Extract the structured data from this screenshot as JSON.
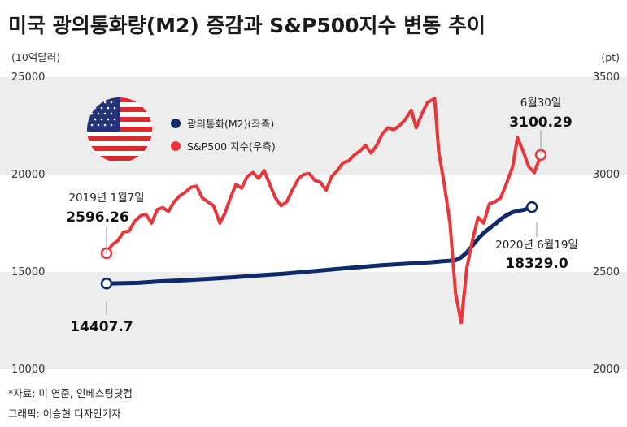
{
  "title": "미국 광의통화량(M2) 증감과 S&P500지수 변동 추이",
  "left_unit": "(10억달러)",
  "right_unit": "(pt)",
  "legend": [
    {
      "label": "광의통화(M2)(좌측)",
      "color": "#0f2a6b"
    },
    {
      "label": "S&P500 지수(우측)",
      "color": "#e8373a"
    }
  ],
  "annotations": {
    "start_date": "2019년 1월7일",
    "start_sp": "2596.26",
    "start_m2": "14407.7",
    "end_sp_date": "6월30일",
    "end_sp": "3100.29",
    "end_m2_date": "2020년 6월19일",
    "end_m2": "18329.0"
  },
  "footer": {
    "source": "*자료: 미 연준, 인베스팅닷컴",
    "graphic": "그래픽: 이승현 디자인기자"
  },
  "colors": {
    "m2": "#0f2a6b",
    "sp": "#e8373a",
    "band": "#ededed"
  },
  "chart_data": {
    "type": "line",
    "title": "미국 광의통화량(M2) 증감과 S&P500지수 변동 추이",
    "x_range": [
      "2019-01-07",
      "2020-06-30"
    ],
    "left_axis": {
      "ticks": [
        "25000",
        "20000",
        "15000",
        "10000"
      ],
      "range": [
        10000,
        25000
      ],
      "unit": "(10억달러)"
    },
    "right_axis": {
      "ticks": [
        "3500",
        "3000",
        "2500",
        "2000"
      ],
      "range": [
        2000,
        3500
      ],
      "unit": "(pt)"
    },
    "series": [
      {
        "name": "광의통화(M2)(좌측)",
        "axis": "left",
        "x": [
          "2019-01-07",
          "2019-02-15",
          "2019-03-15",
          "2019-04-15",
          "2019-05-15",
          "2019-06-15",
          "2019-07-15",
          "2019-08-15",
          "2019-09-15",
          "2019-10-15",
          "2019-11-15",
          "2019-12-15",
          "2020-01-15",
          "2020-02-15",
          "2020-03-02",
          "2020-03-16",
          "2020-03-23",
          "2020-03-30",
          "2020-04-06",
          "2020-04-13",
          "2020-04-20",
          "2020-04-27",
          "2020-05-04",
          "2020-05-11",
          "2020-05-18",
          "2020-05-25",
          "2020-06-01",
          "2020-06-08",
          "2020-06-19"
        ],
        "values": [
          14407.7,
          14440,
          14520,
          14580,
          14650,
          14730,
          14820,
          14910,
          15020,
          15130,
          15240,
          15340,
          15420,
          15500,
          15560,
          15600,
          15750,
          16000,
          16350,
          16700,
          17000,
          17230,
          17450,
          17700,
          17900,
          18050,
          18130,
          18180,
          18329.0
        ]
      },
      {
        "name": "S&P500 지수(우측)",
        "axis": "right",
        "x": [
          "2019-01-07",
          "2019-01-14",
          "2019-01-21",
          "2019-01-28",
          "2019-02-04",
          "2019-02-11",
          "2019-02-19",
          "2019-02-25",
          "2019-03-04",
          "2019-03-11",
          "2019-03-18",
          "2019-03-25",
          "2019-04-01",
          "2019-04-08",
          "2019-04-15",
          "2019-04-22",
          "2019-04-29",
          "2019-05-06",
          "2019-05-13",
          "2019-05-20",
          "2019-05-28",
          "2019-06-03",
          "2019-06-10",
          "2019-06-17",
          "2019-06-24",
          "2019-07-01",
          "2019-07-08",
          "2019-07-15",
          "2019-07-22",
          "2019-07-29",
          "2019-08-05",
          "2019-08-12",
          "2019-08-19",
          "2019-08-26",
          "2019-09-03",
          "2019-09-09",
          "2019-09-16",
          "2019-09-23",
          "2019-09-30",
          "2019-10-07",
          "2019-10-14",
          "2019-10-21",
          "2019-10-28",
          "2019-11-04",
          "2019-11-11",
          "2019-11-18",
          "2019-11-25",
          "2019-12-02",
          "2019-12-09",
          "2019-12-16",
          "2019-12-23",
          "2019-12-30",
          "2020-01-06",
          "2020-01-13",
          "2020-01-21",
          "2020-01-27",
          "2020-02-03",
          "2020-02-10",
          "2020-02-19",
          "2020-02-24",
          "2020-03-02",
          "2020-03-09",
          "2020-03-16",
          "2020-03-23",
          "2020-03-30",
          "2020-04-06",
          "2020-04-13",
          "2020-04-20",
          "2020-04-27",
          "2020-05-04",
          "2020-05-11",
          "2020-05-18",
          "2020-05-26",
          "2020-06-01",
          "2020-06-08",
          "2020-06-15",
          "2020-06-22",
          "2020-06-30"
        ],
        "values": [
          2596.26,
          2640,
          2660,
          2705,
          2710,
          2760,
          2790,
          2795,
          2750,
          2820,
          2830,
          2810,
          2860,
          2890,
          2910,
          2935,
          2940,
          2880,
          2860,
          2840,
          2750,
          2800,
          2880,
          2950,
          2930,
          2990,
          3010,
          2980,
          3020,
          2950,
          2880,
          2840,
          2860,
          2920,
          2980,
          3000,
          3005,
          2970,
          2960,
          2920,
          2990,
          3020,
          3060,
          3070,
          3100,
          3120,
          3150,
          3110,
          3150,
          3210,
          3240,
          3230,
          3250,
          3280,
          3330,
          3240,
          3310,
          3370,
          3390,
          3120,
          2950,
          2750,
          2390,
          2240,
          2520,
          2660,
          2780,
          2750,
          2850,
          2860,
          2880,
          2950,
          3040,
          3190,
          3120,
          3040,
          3010,
          3100.29
        ]
      }
    ]
  }
}
